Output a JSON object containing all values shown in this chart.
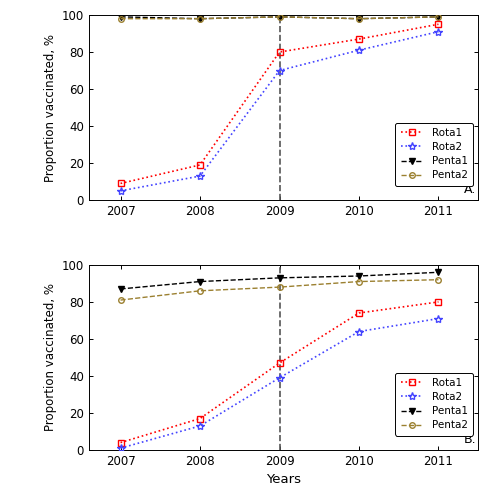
{
  "years": [
    2007,
    2008,
    2009,
    2010,
    2011
  ],
  "panel_A": {
    "rota1": [
      9,
      19,
      80,
      87,
      95
    ],
    "rota2": [
      5,
      13,
      70,
      81,
      91
    ],
    "penta1": [
      99,
      98,
      99,
      98,
      99
    ],
    "penta2": [
      98,
      98,
      99,
      98,
      99
    ],
    "label": "A."
  },
  "panel_B": {
    "rota1": [
      4,
      17,
      47,
      74,
      80
    ],
    "rota2": [
      1,
      13,
      39,
      64,
      71
    ],
    "penta1": [
      87,
      91,
      93,
      94,
      96
    ],
    "penta2": [
      81,
      86,
      88,
      91,
      92
    ],
    "label": "B."
  },
  "vline_x": 2009,
  "ylim": [
    0,
    100
  ],
  "yticks": [
    0,
    20,
    40,
    60,
    80,
    100
  ],
  "ylabel": "Proportion vaccinated, %",
  "xlabel": "Years",
  "colors": {
    "rota1": "#FF0000",
    "rota2": "#4444FF",
    "penta1": "#000000",
    "penta2": "#9B8030"
  },
  "vline_color": "#555555",
  "background_color": "#FFFFFF"
}
